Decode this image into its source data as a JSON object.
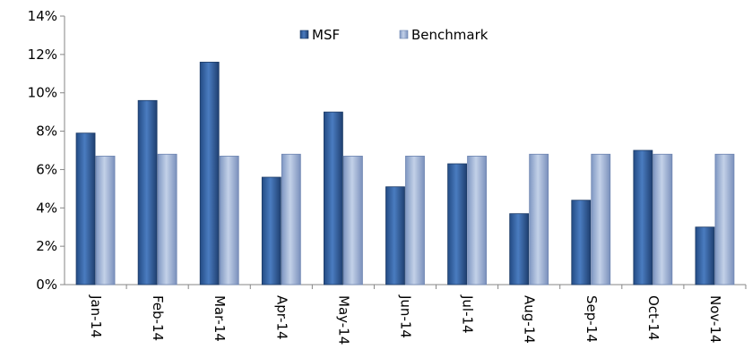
{
  "chart_data": {
    "type": "bar",
    "title": "",
    "xlabel": "",
    "ylabel": "",
    "categories": [
      "Jan-14",
      "Feb-14",
      "Mar-14",
      "Apr-14",
      "May-14",
      "Jun-14",
      "Jul-14",
      "Aug-14",
      "Sep-14",
      "Oct-14",
      "Nov-14"
    ],
    "series": [
      {
        "name": "MSF",
        "values": [
          7.9,
          9.6,
          11.6,
          5.6,
          9.0,
          5.1,
          6.3,
          3.7,
          4.4,
          7.0,
          3.0
        ]
      },
      {
        "name": "Benchmark",
        "values": [
          6.7,
          6.8,
          6.7,
          6.8,
          6.7,
          6.7,
          6.7,
          6.8,
          6.8,
          6.8,
          6.8
        ]
      }
    ],
    "ylim": [
      0,
      14
    ],
    "y_ticks": [
      "0%",
      "2%",
      "4%",
      "6%",
      "8%",
      "10%",
      "12%",
      "14%"
    ],
    "grid": false,
    "legend_position": "top-center",
    "colors": {
      "MSF": "#2e5c9a",
      "Benchmark": "#8fa6cc"
    }
  }
}
